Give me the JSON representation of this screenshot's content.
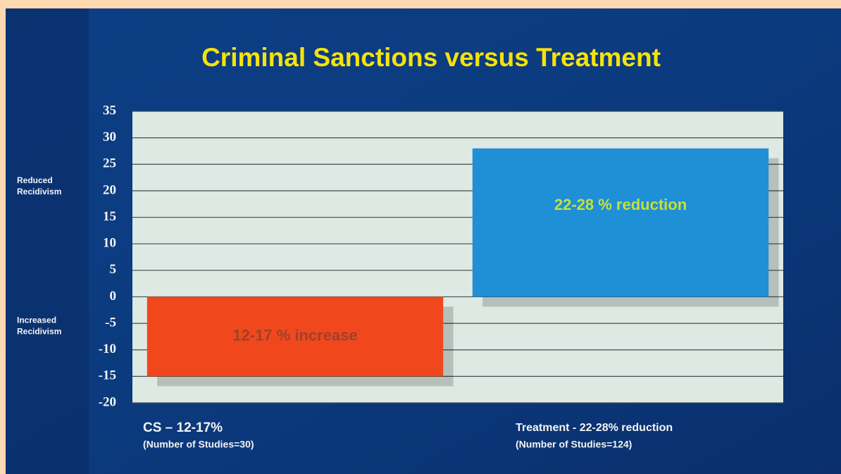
{
  "chart_data": {
    "type": "bar",
    "title": "Criminal Sanctions versus Treatment",
    "categories": [
      "CS – 12-17%",
      "Treatment  - 22-28% reduction"
    ],
    "category_notes": [
      "(Number of Studies=30)",
      "(Number of Studies=124)"
    ],
    "values": [
      -15,
      28
    ],
    "annotations": [
      "12-17 % increase",
      "22-28 % reduction"
    ],
    "colors": [
      "#f0481c",
      "#1f8fd6"
    ],
    "annotation_colors": [
      "#a0402c",
      "#c6e03a"
    ],
    "ylim": [
      -20,
      35
    ],
    "yticks": [
      35,
      30,
      25,
      20,
      15,
      10,
      5,
      0,
      -5,
      -10,
      -15,
      -20
    ],
    "grid": true,
    "y_side_labels": {
      "upper": [
        "Reduced",
        "Recidivism"
      ],
      "lower": [
        "Increased",
        "Recidivism"
      ]
    }
  }
}
